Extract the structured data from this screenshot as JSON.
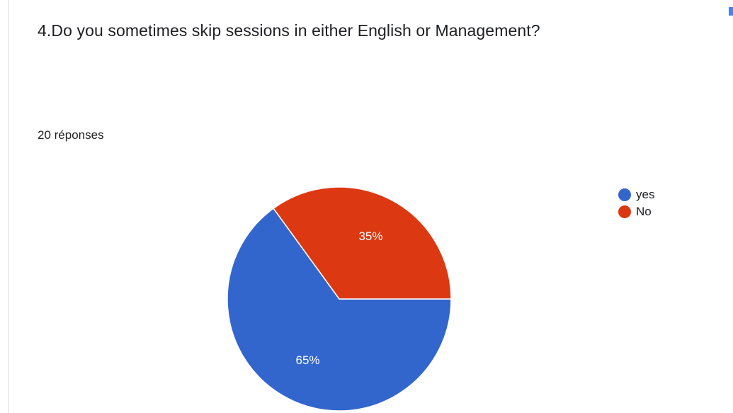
{
  "question": {
    "title": "4.Do you sometimes skip sessions in either English or Management?",
    "response_count": "20 réponses"
  },
  "chart_data": {
    "type": "pie",
    "categories": [
      "yes",
      "No"
    ],
    "values": [
      65,
      35
    ],
    "value_labels": [
      "65%",
      "35%"
    ],
    "colors": [
      "#3366cc",
      "#dc3912"
    ],
    "title": "",
    "legend_position": "right"
  }
}
